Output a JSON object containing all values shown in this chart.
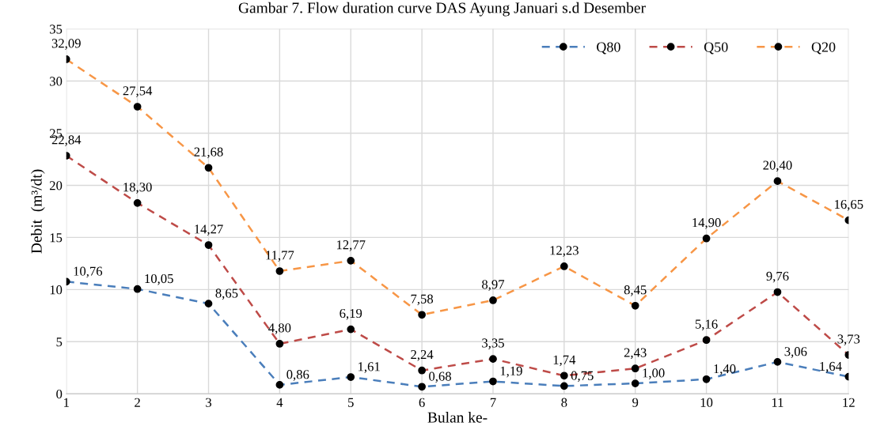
{
  "chart_data": {
    "type": "line",
    "title": "Gambar 7. Flow duration curve DAS Ayung Januari s.d Desember",
    "xlabel": "Bulan ke-",
    "ylabel": "Debit  (m³/dt)",
    "categories": [
      "1",
      "2",
      "3",
      "4",
      "5",
      "6",
      "7",
      "8",
      "9",
      "10",
      "11",
      "12"
    ],
    "ylim": [
      0,
      35
    ],
    "yticks": [
      0,
      5,
      10,
      15,
      20,
      25,
      30,
      35
    ],
    "grid": true,
    "legend": "top right",
    "marker": "circle",
    "line_style": "dashed",
    "series": [
      {
        "name": "Q80",
        "color": "#4a7ebb",
        "values": [
          10.76,
          10.05,
          8.65,
          0.86,
          1.61,
          0.68,
          1.19,
          0.75,
          1.0,
          1.4,
          3.06,
          1.64
        ],
        "value_labels": [
          "10,76",
          "10,05",
          "8,65",
          "0,86",
          "1,61",
          "0,68",
          "1,19",
          "0,75",
          "1,00",
          "1,40",
          "3,06",
          "1,64"
        ]
      },
      {
        "name": "Q50",
        "color": "#be4b48",
        "values": [
          22.84,
          18.3,
          14.27,
          4.8,
          6.19,
          2.24,
          3.35,
          1.74,
          2.43,
          5.16,
          9.76,
          3.73
        ],
        "value_labels": [
          "22,84",
          "18,30",
          "14,27",
          "4,80",
          "6,19",
          "2,24",
          "3,35",
          "1,74",
          "2,43",
          "5,16",
          "9,76",
          "3,73"
        ]
      },
      {
        "name": "Q20",
        "color": "#f79646",
        "values": [
          32.09,
          27.54,
          21.68,
          11.77,
          12.77,
          7.58,
          8.97,
          12.23,
          8.45,
          14.9,
          20.4,
          16.65
        ],
        "value_labels": [
          "32,09",
          "27,54",
          "21,68",
          "11,77",
          "12,77",
          "7,58",
          "8,97",
          "12,23",
          "8,45",
          "14,90",
          "20,40",
          "16,65"
        ]
      }
    ]
  }
}
